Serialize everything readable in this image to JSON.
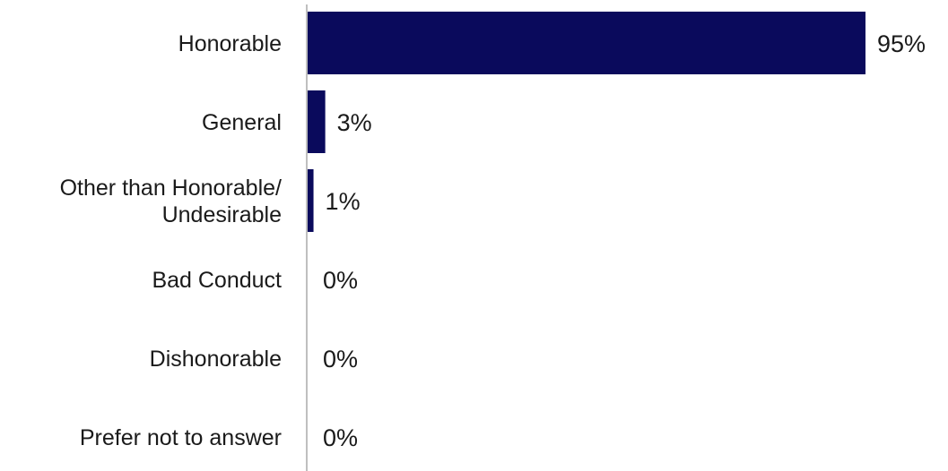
{
  "chart_data": {
    "type": "bar",
    "orientation": "horizontal",
    "categories": [
      [
        "Honorable"
      ],
      [
        "General"
      ],
      [
        "Other than Honorable/",
        "Undesirable"
      ],
      [
        "Bad Conduct"
      ],
      [
        "Dishonorable"
      ],
      [
        "Prefer not to answer"
      ]
    ],
    "values": [
      95,
      3,
      1,
      0,
      0,
      0
    ],
    "value_labels": [
      "95%",
      "3%",
      "1%",
      "0%",
      "0%",
      "0%"
    ],
    "xlim": [
      0,
      100
    ],
    "grid": false,
    "legend": "none",
    "bar_color": "#0a0a5c",
    "axis_color": "#bfbfbf"
  }
}
